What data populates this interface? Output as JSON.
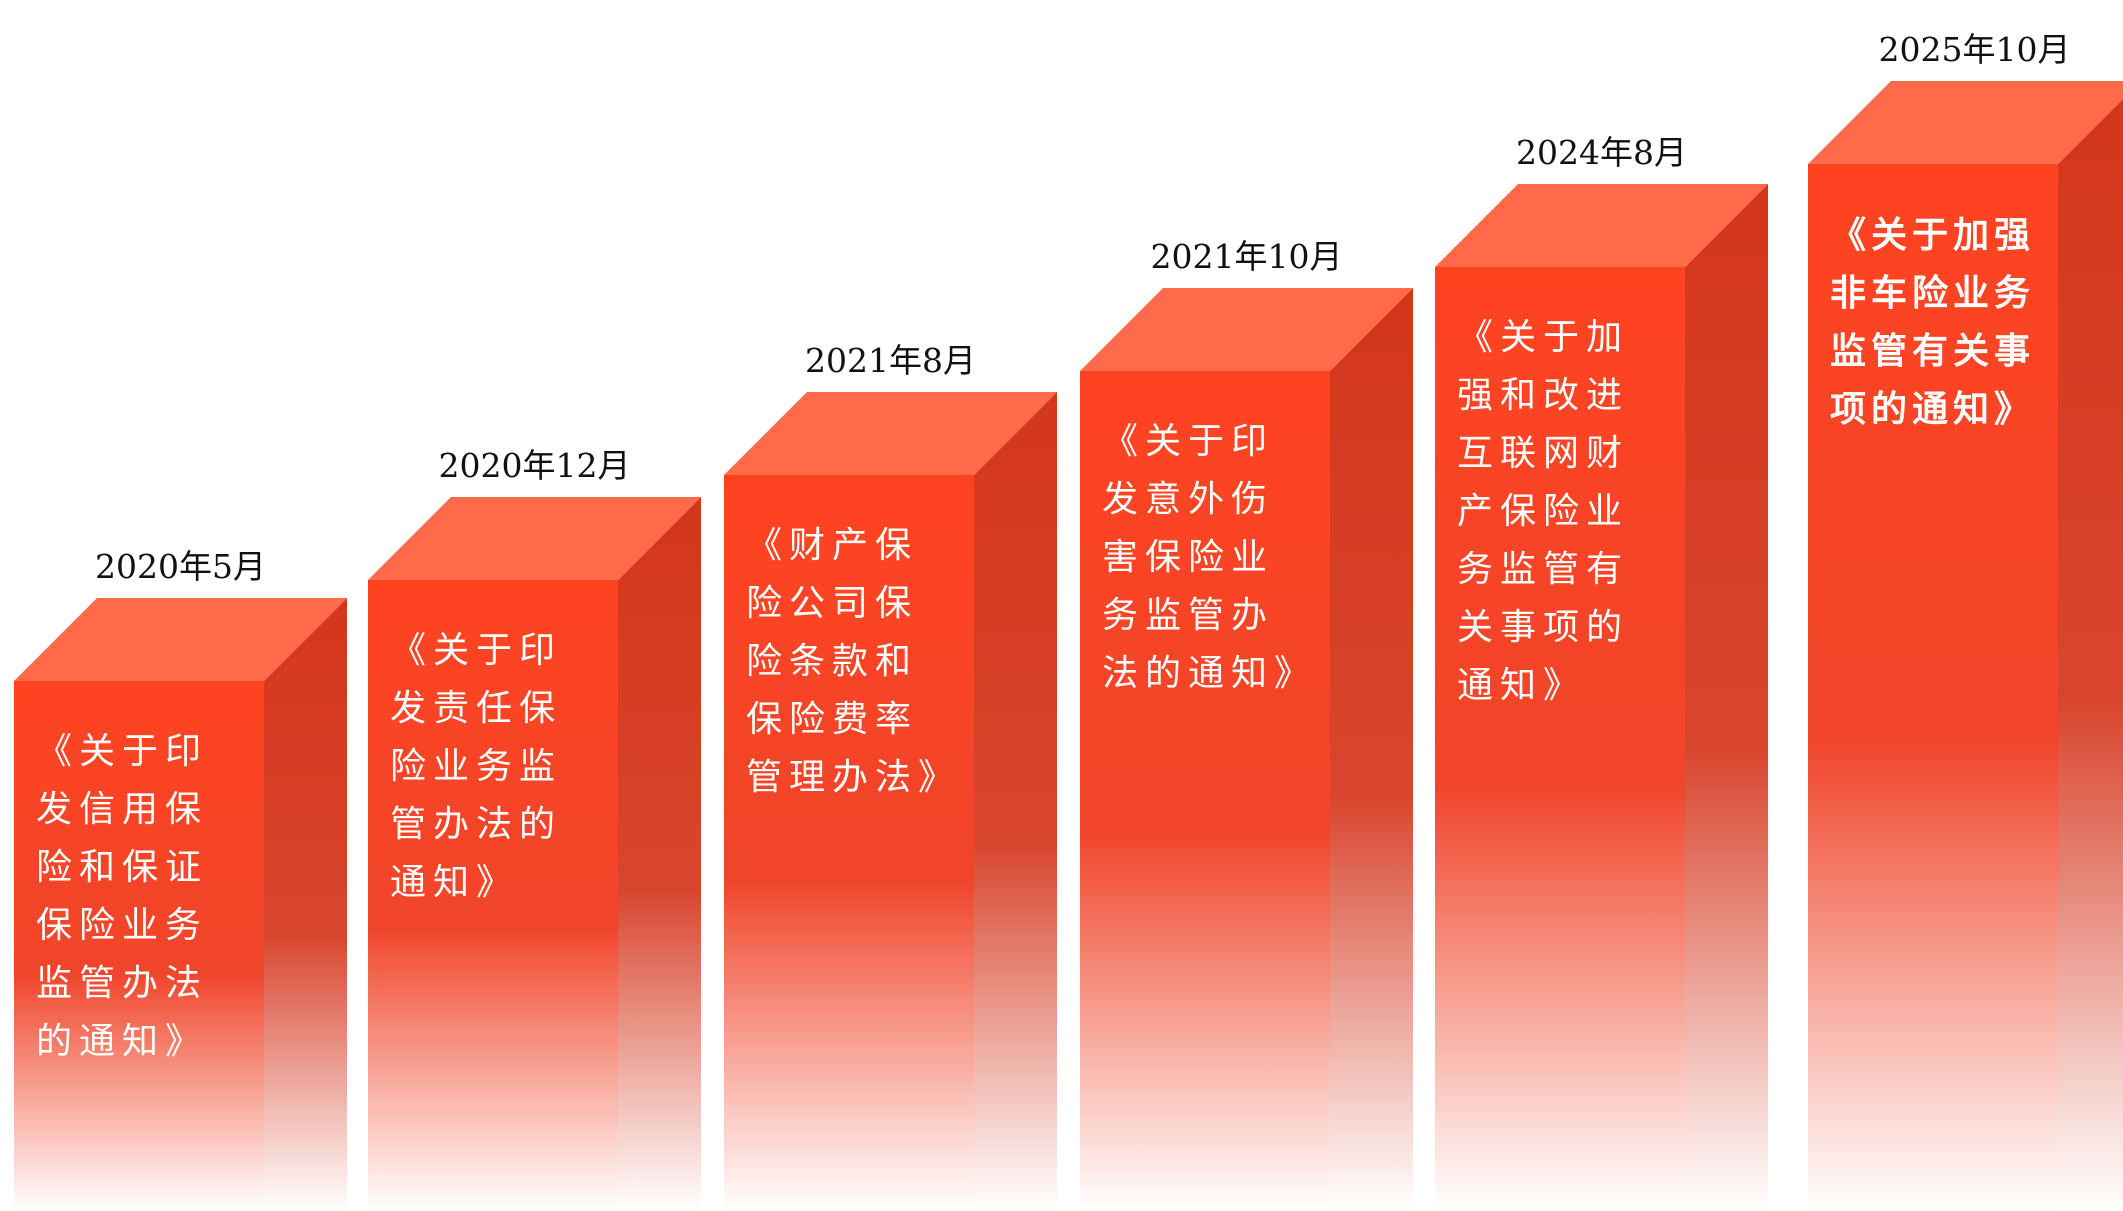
{
  "items": [
    {
      "date": "2020年5月",
      "title": "《关于印发信用保险和保证保险业务监管办法的通知》"
    },
    {
      "date": "2020年12月",
      "title": "《关于印发责任保险业务监管办法的通知》"
    },
    {
      "date": "2021年8月",
      "title": "《财产保险公司保险条款和保险费率管理办法》"
    },
    {
      "date": "2021年10月",
      "title": "《关于印发意外伤害保险业务监管办法的通知》"
    },
    {
      "date": "2024年8月",
      "title": "《关于加强和改进互联网财产保险业务监管有关事项的通知》"
    },
    {
      "date": "2025年10月",
      "title": "《关于加强非车险业务监管有关事项的通知》"
    }
  ]
}
